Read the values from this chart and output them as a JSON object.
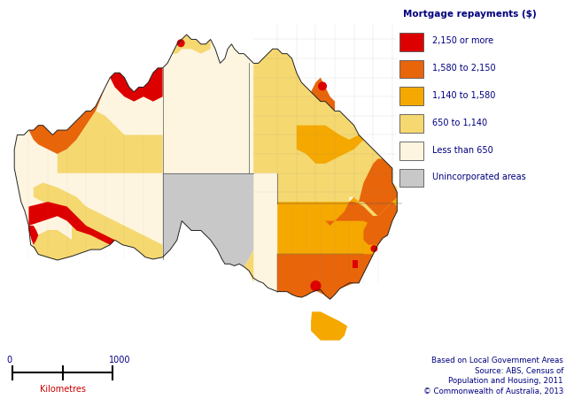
{
  "legend_title": "Mortgage repayments ($)",
  "legend_labels": [
    "2,150 or more",
    "1,580 to 2,150",
    "1,140 to 1,580",
    "650 to 1,140",
    "Less than 650",
    "Unincorporated areas"
  ],
  "legend_colors": [
    "#dd0000",
    "#e8650a",
    "#f5a800",
    "#f5d870",
    "#fdf5e0",
    "#c8c8c8"
  ],
  "legend_edge_color": "#555555",
  "scalebar_label": "Kilometres",
  "scalebar_values": [
    "0",
    "1000"
  ],
  "source_text": "Based on Local Government Areas\nSource: ABS, Census of\nPopulation and Housing, 2011\n© Commonwealth of Australia, 2013",
  "background_color": "#ffffff",
  "label_color": "#000080",
  "source_color": "#000080",
  "scalebar_color": "#000080",
  "scalebar_km_color": "#cc0000",
  "figsize": [
    6.39,
    4.52
  ],
  "dpi": 100,
  "legend_title_fontsize": 7.5,
  "legend_label_fontsize": 7,
  "source_fontsize": 6.2,
  "scalebar_fontsize": 7,
  "map_extent": [
    112,
    154,
    -44,
    -10
  ],
  "state_boundaries": {
    "WA_east": 129.0,
    "NT_SA_border": 26.0,
    "QLD_west": 138.0,
    "NSW_VIC_border": -34.0,
    "SA_VIC_border": 141.0
  }
}
